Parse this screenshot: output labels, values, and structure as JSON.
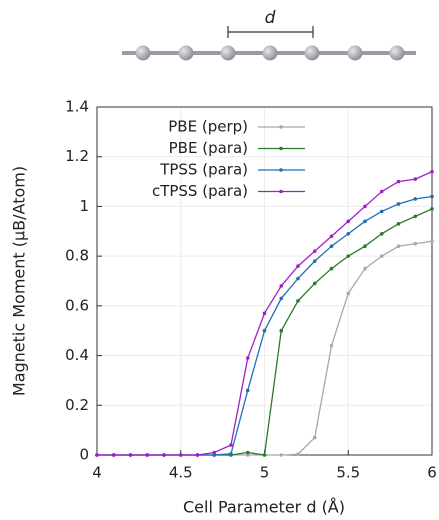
{
  "chart_data": {
    "type": "line",
    "annotation": "d",
    "xlabel": "Cell Parameter d (Å)",
    "ylabel": "Magnetic Moment (μB/Atom)",
    "x": [
      4.0,
      4.1,
      4.2,
      4.3,
      4.4,
      4.5,
      4.6,
      4.7,
      4.8,
      4.9,
      5.0,
      5.1,
      5.2,
      5.3,
      5.4,
      5.5,
      5.6,
      5.7,
      5.8,
      5.9,
      6.0
    ],
    "series": [
      {
        "name": "PBE (perp)",
        "color": "#a8a8a8",
        "values": [
          0,
          0,
          0,
          0,
          0,
          0,
          0,
          0,
          0,
          0,
          0,
          0,
          0.003,
          0.07,
          0.44,
          0.65,
          0.75,
          0.8,
          0.84,
          0.85,
          0.86
        ]
      },
      {
        "name": "PBE (para)",
        "color": "#2a7a2a",
        "values": [
          0,
          0,
          0,
          0,
          0,
          0,
          0,
          0,
          0,
          0.01,
          0,
          0.5,
          0.62,
          0.69,
          0.75,
          0.8,
          0.84,
          0.89,
          0.93,
          0.96,
          0.99
        ]
      },
      {
        "name": "TPSS (para)",
        "color": "#1f6fb4",
        "values": [
          0,
          0,
          0,
          0,
          0,
          0,
          0,
          0,
          0.005,
          0.26,
          0.5,
          0.63,
          0.71,
          0.78,
          0.84,
          0.89,
          0.94,
          0.98,
          1.01,
          1.03,
          1.04
        ]
      },
      {
        "name": "cTPSS (para)",
        "color": "#a020c8",
        "values": [
          0,
          0,
          0,
          0,
          0,
          0,
          0,
          0.01,
          0.04,
          0.39,
          0.57,
          0.68,
          0.76,
          0.82,
          0.88,
          0.94,
          1.0,
          1.06,
          1.1,
          1.11,
          1.14
        ]
      }
    ],
    "xlim": [
      4,
      6
    ],
    "xticks": [
      4,
      4.5,
      5,
      5.5,
      6
    ],
    "ylim": [
      0,
      1.4
    ],
    "yticks": [
      0,
      0.2,
      0.4,
      0.6,
      0.8,
      1,
      1.2,
      1.4
    ],
    "grid": true,
    "legend": "top-left"
  }
}
